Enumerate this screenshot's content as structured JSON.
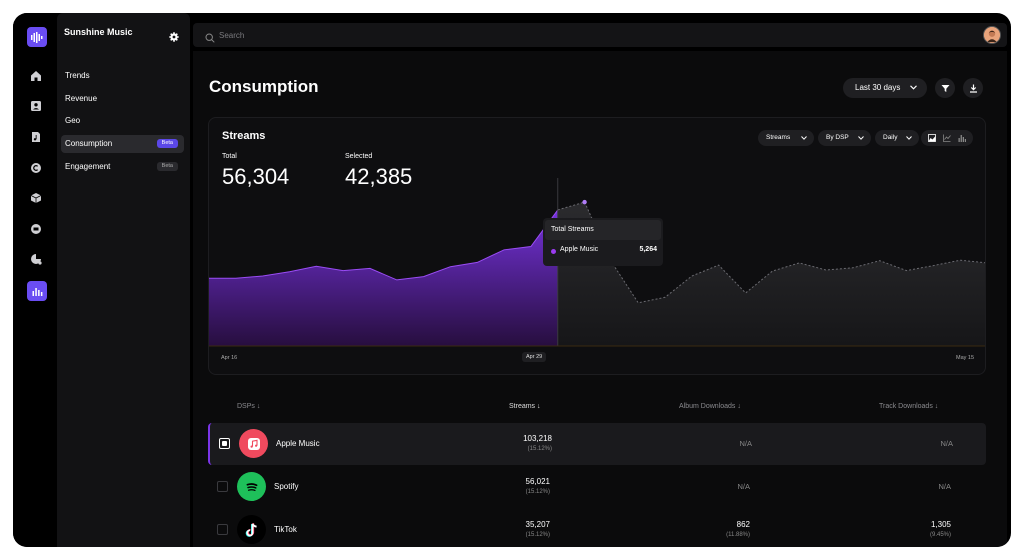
{
  "app": {
    "name": "Sunshine Music",
    "nav": [
      {
        "label": "Trends"
      },
      {
        "label": "Revenue"
      },
      {
        "label": "Geo"
      },
      {
        "label": "Consumption",
        "badge": "Beta",
        "active": true
      },
      {
        "label": "Engagement",
        "badge": "Beta"
      }
    ],
    "rail_icons": [
      "home-icon",
      "contacts-icon",
      "music-file-icon",
      "copyright-icon",
      "package-icon",
      "money-icon",
      "pie-chart-icon",
      "bar-chart-icon"
    ]
  },
  "search": {
    "placeholder": "Search"
  },
  "page": {
    "title": "Consumption",
    "date_range": "Last 30 days"
  },
  "chart_card": {
    "title": "Streams",
    "total_label": "Total",
    "total_value": "56,304",
    "selected_label": "Selected",
    "selected_value": "42,385",
    "controls": {
      "metric": "Streams",
      "group": "By DSP",
      "interval": "Daily"
    },
    "tooltip": {
      "title": "Total Streams",
      "series": "Apple Music",
      "value": "5,264"
    },
    "x_ticks": {
      "start": "Apr 16",
      "selected": "Apr 29",
      "end": "May 15"
    }
  },
  "chart_data": {
    "type": "area",
    "x": [
      "Apr 16",
      "Apr 17",
      "Apr 18",
      "Apr 19",
      "Apr 20",
      "Apr 21",
      "Apr 22",
      "Apr 23",
      "Apr 24",
      "Apr 25",
      "Apr 26",
      "Apr 27",
      "Apr 28",
      "Apr 29",
      "Apr 30",
      "May 1",
      "May 2",
      "May 3",
      "May 4",
      "May 5",
      "May 6",
      "May 7",
      "May 8",
      "May 9",
      "May 10",
      "May 11",
      "May 12",
      "May 13",
      "May 14",
      "May 15"
    ],
    "series": [
      {
        "name": "Apple Music",
        "values": [
          2480,
          2480,
          2560,
          2720,
          2920,
          2760,
          2840,
          2420,
          2540,
          2900,
          3060,
          3520,
          3640,
          4980,
          5264,
          3080,
          1580,
          1780,
          2560,
          2960,
          1940,
          2740,
          3040,
          2780,
          2860,
          3120,
          2760,
          2940,
          3140,
          3040
        ]
      }
    ],
    "selected_range": [
      "Apr 16",
      "Apr 29"
    ],
    "ylim": [
      0,
      6000
    ],
    "grid": false
  },
  "table": {
    "headers": {
      "dsp": "DSPs",
      "streams": "Streams",
      "album": "Album Downloads",
      "track": "Track Downloads"
    },
    "rows": [
      {
        "name": "Apple Music",
        "streams": "103,218",
        "streams_pct": "(15.12%)",
        "album": "N/A",
        "album_pct": "",
        "track": "N/A",
        "track_pct": "",
        "selected": true,
        "logo_color": "#f04a5e"
      },
      {
        "name": "Spotify",
        "streams": "56,021",
        "streams_pct": "(15.12%)",
        "album": "N/A",
        "album_pct": "",
        "track": "N/A",
        "track_pct": "",
        "selected": false,
        "logo_color": "#1ec05a"
      },
      {
        "name": "TikTok",
        "streams": "35,207",
        "streams_pct": "(15.12%)",
        "album": "862",
        "album_pct": "(11.88%)",
        "track": "1,305",
        "track_pct": "(9.45%)",
        "selected": false,
        "logo_color": "#000000"
      }
    ]
  },
  "colors": {
    "accent": "#6a4df3",
    "series": "#7b35e8",
    "bg": "#0b0b0c"
  }
}
